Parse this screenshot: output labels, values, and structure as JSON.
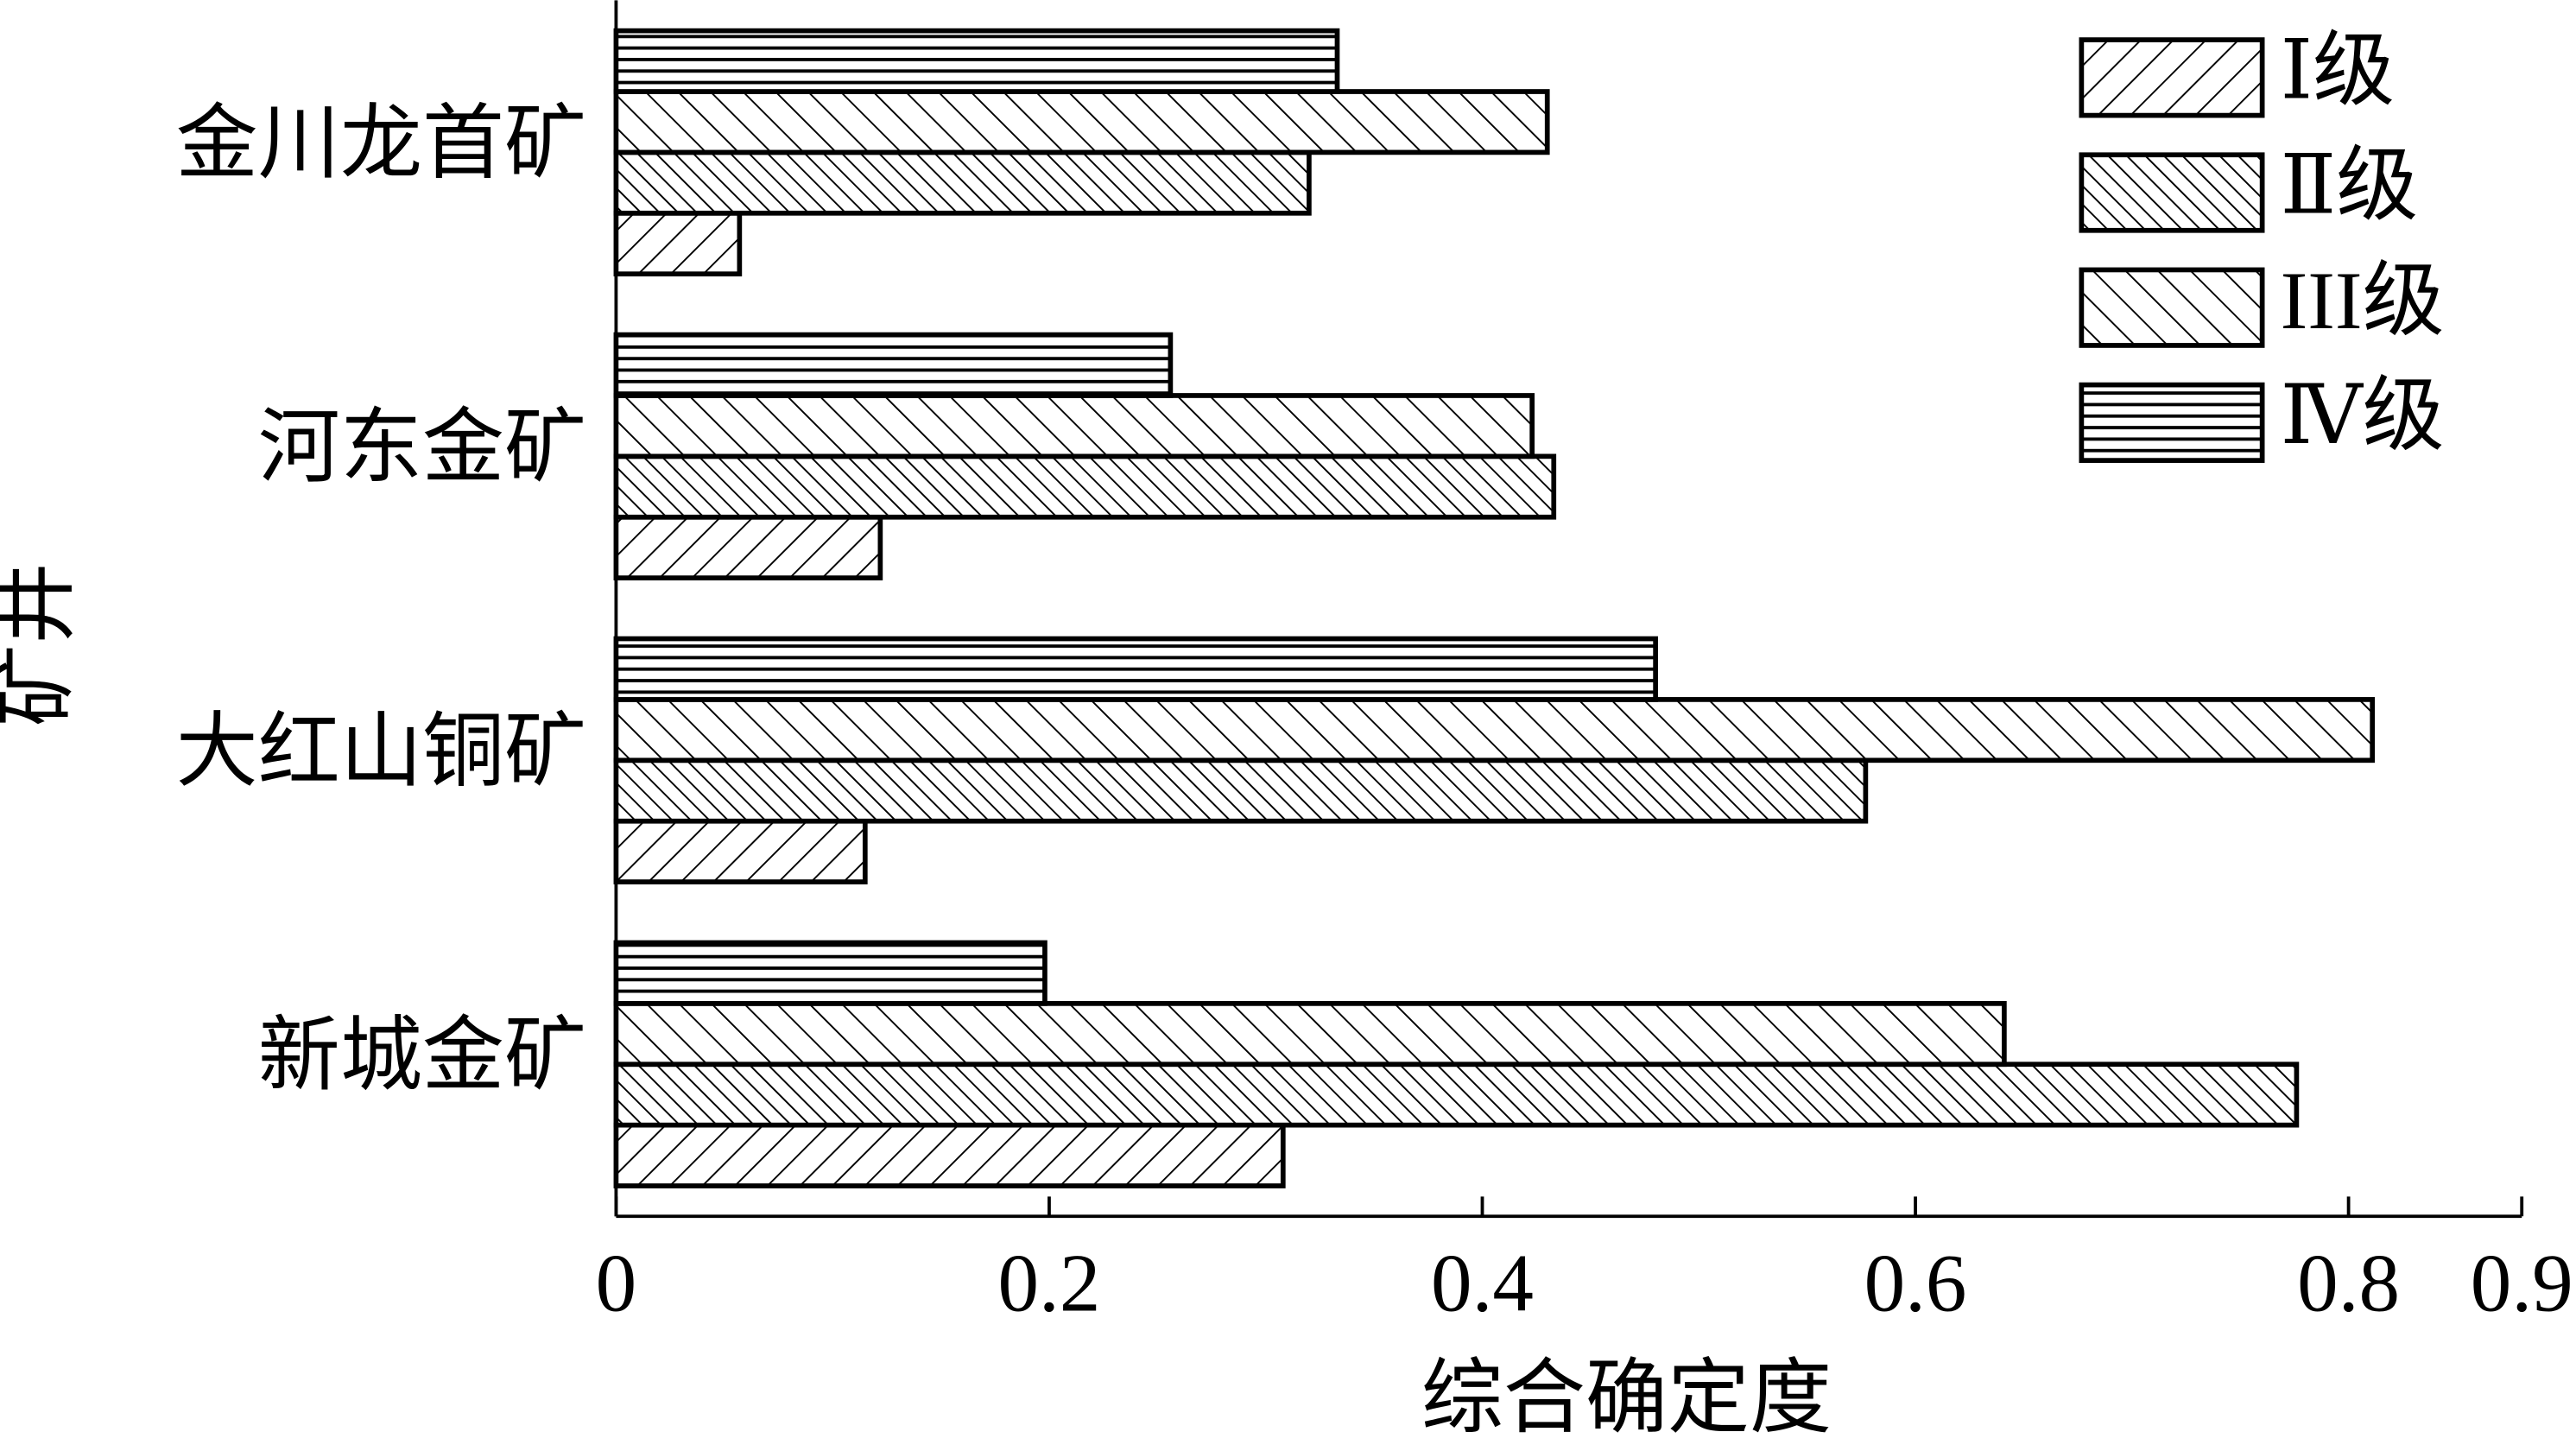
{
  "chart_data": {
    "type": "hbar",
    "x_label": "综合确定度",
    "y_label": "矿井",
    "categories": [
      "金川龙首矿",
      "河东金矿",
      "大红山铜矿",
      "新城金矿"
    ],
    "series": [
      {
        "name": "Ⅰ级",
        "color": "#000000",
        "hatch": "forward",
        "values": [
          0.057,
          0.122,
          0.115,
          0.308
        ]
      },
      {
        "name": "Ⅱ级",
        "color": "#000000",
        "hatch": "back-dense",
        "values": [
          0.32,
          0.433,
          0.577,
          0.776
        ]
      },
      {
        "name": "III级",
        "color": "#000000",
        "hatch": "back",
        "values": [
          0.43,
          0.423,
          0.811,
          0.641
        ]
      },
      {
        "name": "Ⅳ级",
        "color": "#000000",
        "hatch": "horizontal",
        "values": [
          0.333,
          0.256,
          0.48,
          0.198
        ]
      }
    ],
    "xlim": [
      0,
      0.88
    ],
    "xticks": [
      0,
      0.2,
      0.4,
      0.6,
      0.8,
      {
        "value": 0.88,
        "label": "0.9"
      }
    ],
    "legend": "top-right"
  }
}
